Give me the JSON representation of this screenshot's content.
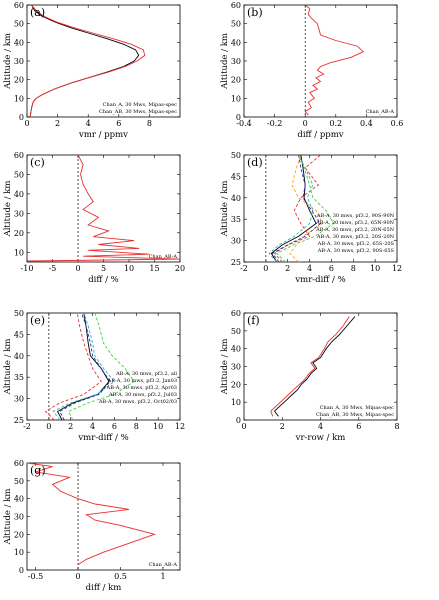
{
  "chart_data": [
    {
      "id": "a",
      "type": "line",
      "letter": "(a)",
      "xlabel": "vmr / ppmv",
      "ylabel": "Altitude / km",
      "xlim": [
        0,
        10
      ],
      "ylim": [
        0,
        60
      ],
      "xticks": [
        0,
        2,
        4,
        6,
        8
      ],
      "yticks": [
        0,
        10,
        20,
        30,
        40,
        50,
        60
      ],
      "legend_pos": "bottom-right",
      "zero_line": false,
      "series": [
        {
          "name": "Chan_A, 30 Mws, Mipas-spec",
          "color": "#000000",
          "x": [
            0.2,
            0.3,
            0.4,
            0.6,
            1.0,
            1.8,
            2.8,
            4.0,
            5.2,
            6.3,
            7.0,
            7.3,
            7.1,
            6.3,
            5.2,
            4.0,
            2.8,
            1.8,
            1.0,
            0.5,
            0.3
          ],
          "y": [
            0,
            5,
            8,
            10,
            12,
            15,
            18,
            21,
            24,
            27,
            30,
            33,
            36,
            39,
            42,
            45,
            48,
            51,
            54,
            57,
            60
          ]
        },
        {
          "name": "Chan_AB, 30 Mws, Mipas-spec",
          "color": "#e83030",
          "x": [
            0.2,
            0.3,
            0.4,
            0.6,
            1.0,
            1.8,
            2.8,
            4.0,
            5.3,
            6.4,
            7.2,
            7.7,
            7.6,
            6.8,
            5.6,
            4.3,
            3.0,
            1.9,
            1.1,
            0.6,
            0.3
          ],
          "y": [
            0,
            5,
            8,
            10,
            12,
            15,
            18,
            21,
            24,
            27,
            30,
            33,
            36,
            39,
            42,
            45,
            48,
            51,
            54,
            57,
            60
          ]
        }
      ]
    },
    {
      "id": "b",
      "type": "line",
      "letter": "(b)",
      "xlabel": "diff / ppmv",
      "ylabel": "Altitude / km",
      "xlim": [
        -0.4,
        0.6
      ],
      "ylim": [
        0,
        60
      ],
      "xticks": [
        -0.4,
        -0.2,
        0.0,
        0.2,
        0.4,
        0.6
      ],
      "yticks": [
        0,
        10,
        20,
        30,
        40,
        50,
        60
      ],
      "legend_pos": "bottom-right",
      "zero_line": true,
      "series": [
        {
          "name": "Chan_AB-A",
          "color": "#e83030",
          "x": [
            0.02,
            0.0,
            0.04,
            0.02,
            0.06,
            0.03,
            0.08,
            0.05,
            0.1,
            0.07,
            0.12,
            0.08,
            0.1,
            0.16,
            0.3,
            0.38,
            0.34,
            0.2,
            0.1,
            0.09,
            0.08,
            0.04,
            0.02,
            0.03,
            0.0
          ],
          "y": [
            1,
            3,
            5,
            8,
            10,
            13,
            15,
            17,
            19,
            21,
            23,
            25,
            27,
            29,
            32,
            35,
            38,
            41,
            44,
            47,
            50,
            53,
            55,
            58,
            60
          ]
        }
      ]
    },
    {
      "id": "c",
      "type": "line",
      "letter": "(c)",
      "xlabel": "diff / %",
      "ylabel": "Altitude / km",
      "xlim": [
        -10,
        20
      ],
      "ylim": [
        5,
        60
      ],
      "xticks": [
        -10,
        -5,
        0,
        5,
        10,
        15,
        20
      ],
      "yticks": [
        10,
        20,
        30,
        40,
        50,
        60
      ],
      "legend_pos": "bottom-right",
      "zero_line": true,
      "series": [
        {
          "name": "Chan_AB-A",
          "color": "#e83030",
          "x": [
            -10,
            20,
            1,
            14,
            2,
            12,
            4,
            11,
            3,
            6,
            2,
            4,
            1,
            3,
            2,
            1,
            0.5,
            1,
            0
          ],
          "y": [
            5.5,
            6.5,
            8,
            9,
            11,
            12,
            14,
            16,
            18,
            21,
            24,
            28,
            32,
            36,
            40,
            45,
            50,
            55,
            60
          ]
        }
      ]
    },
    {
      "id": "d",
      "type": "line",
      "letter": "(d)",
      "xlabel": "vmr-diff / %",
      "ylabel": "Altitude / km",
      "xlim": [
        -2,
        12
      ],
      "ylim": [
        25,
        50
      ],
      "xticks": [
        -2,
        0,
        2,
        4,
        6,
        8,
        10,
        12
      ],
      "yticks": [
        25,
        30,
        35,
        40,
        45,
        50
      ],
      "legend_pos": "right",
      "zero_line": true,
      "series": [
        {
          "name": "AB-A, 30 mws, pf3.2, 90S-90N",
          "color": "#000000",
          "dash": "",
          "x": [
            1.0,
            0.5,
            1.5,
            3.0,
            4.6,
            4.0,
            3.5,
            3.6,
            3.4,
            3.2
          ],
          "y": [
            25,
            27,
            29,
            31,
            34,
            37,
            40,
            43,
            47,
            50
          ]
        },
        {
          "name": "AB-A, 30 mws, pf3.2, 65N-90N",
          "color": "#e83030",
          "dash": "3,2",
          "x": [
            1.5,
            0.8,
            2.0,
            4.0,
            3.2,
            2.6,
            3.2,
            4.8,
            3.6,
            5.0
          ],
          "y": [
            25,
            27,
            29,
            31,
            34,
            37,
            40,
            43,
            47,
            50
          ]
        },
        {
          "name": "AB-A, 30 mws, pf3.2, 20N-65N",
          "color": "#2fb7a8",
          "dash": "3,2",
          "x": [
            1.0,
            0.3,
            1.2,
            2.6,
            4.0,
            4.3,
            3.8,
            4.3,
            3.6,
            3.0
          ],
          "y": [
            25,
            27,
            29,
            31,
            34,
            37,
            40,
            43,
            47,
            50
          ]
        },
        {
          "name": "AB-A, 30 mws, pf3.2, 20S-20N",
          "color": "#3bd23b",
          "dash": "3,2",
          "x": [
            1.8,
            1.0,
            2.5,
            4.5,
            6.2,
            5.5,
            4.3,
            4.0,
            3.5,
            3.0
          ],
          "y": [
            25,
            27,
            29,
            31,
            34,
            37,
            40,
            43,
            47,
            50
          ]
        },
        {
          "name": "AB-A, 30 mws, pf3.2, 65S-20S",
          "color": "#2030c0",
          "dash": "3,2",
          "x": [
            1.2,
            0.6,
            2.0,
            3.6,
            5.0,
            4.2,
            3.4,
            3.6,
            3.2,
            3.0
          ],
          "y": [
            25,
            27,
            29,
            31,
            34,
            37,
            40,
            43,
            47,
            50
          ]
        },
        {
          "name": "AB-A, 30 mws, pf3.2, 90S-65S",
          "color": "#ffa020",
          "dash": "3,2",
          "x": [
            3.0,
            2.2,
            2.8,
            3.4,
            5.2,
            4.6,
            3.0,
            2.4,
            2.8,
            3.2
          ],
          "y": [
            25,
            27,
            29,
            31,
            34,
            37,
            40,
            43,
            47,
            50
          ]
        }
      ]
    },
    {
      "id": "e",
      "type": "line",
      "letter": "(e)",
      "xlabel": "vmr-diff / %",
      "ylabel": "Altitude / km",
      "xlim": [
        -2,
        12
      ],
      "ylim": [
        25,
        50
      ],
      "xticks": [
        -2,
        0,
        2,
        4,
        6,
        8,
        10,
        12
      ],
      "yticks": [
        25,
        30,
        35,
        40,
        45,
        50
      ],
      "legend_pos": "right",
      "zero_line": true,
      "series": [
        {
          "name": "AB-A, 30 mws, pf3.2, all",
          "color": "#000000",
          "dash": "",
          "x": [
            1.2,
            0.8,
            2.2,
            4.5,
            5.5,
            4.8,
            3.8,
            3.6,
            3.4,
            3.2
          ],
          "y": [
            25,
            27,
            29,
            31,
            34,
            37,
            40,
            43,
            47,
            50
          ]
        },
        {
          "name": "AB-A, 30 mws, pf3.2, Jan03",
          "color": "#e83030",
          "dash": "3,2",
          "x": [
            0.5,
            -0.3,
            1.0,
            3.2,
            4.8,
            4.0,
            3.6,
            3.2,
            2.8,
            2.6
          ],
          "y": [
            25,
            27,
            29,
            31,
            34,
            37,
            40,
            43,
            47,
            50
          ]
        },
        {
          "name": "AB-A, 30 mws, pf3.2, Apr03",
          "color": "#2fb7a8",
          "dash": "3,2",
          "x": [
            1.0,
            0.4,
            2.0,
            4.4,
            6.0,
            5.0,
            4.2,
            4.0,
            3.6,
            3.2
          ],
          "y": [
            25,
            27,
            29,
            31,
            34,
            37,
            40,
            43,
            47,
            50
          ]
        },
        {
          "name": "AB-A, 30 mws, pf3.2, Jul03",
          "color": "#3bd23b",
          "dash": "3,2",
          "x": [
            2.2,
            1.8,
            3.6,
            6.0,
            7.8,
            7.0,
            5.8,
            5.0,
            4.6,
            4.2
          ],
          "y": [
            25,
            27,
            29,
            31,
            34,
            37,
            40,
            43,
            47,
            50
          ]
        },
        {
          "name": "AB-A, 30 mws, pf3.2, Oct02/03",
          "color": "#2030c0",
          "dash": "3,2",
          "x": [
            1.4,
            1.0,
            2.4,
            4.6,
            5.6,
            4.8,
            4.0,
            3.8,
            3.4,
            3.0
          ],
          "y": [
            25,
            27,
            29,
            31,
            34,
            37,
            40,
            43,
            47,
            50
          ]
        }
      ]
    },
    {
      "id": "f",
      "type": "line",
      "letter": "(f)",
      "xlabel": "vr-row / km",
      "ylabel": "Altitude / km",
      "xlim": [
        0,
        8
      ],
      "ylim": [
        0,
        60
      ],
      "xticks": [
        0,
        2,
        4,
        6,
        8
      ],
      "yticks": [
        0,
        10,
        20,
        30,
        40,
        50,
        60
      ],
      "legend_pos": "bottom-right",
      "zero_line": false,
      "series": [
        {
          "name": "Chan_A, 30 Mws, Mipas-spec",
          "color": "#000000",
          "x": [
            1.8,
            1.6,
            1.9,
            2.2,
            2.5,
            2.8,
            3.0,
            3.3,
            3.5,
            3.8,
            3.6,
            4.0,
            4.3,
            4.6,
            5.0,
            5.4,
            5.8
          ],
          "y": [
            2,
            5,
            8,
            11,
            14,
            17,
            20,
            23,
            26,
            29,
            32,
            35,
            40,
            44,
            48,
            53,
            58
          ]
        },
        {
          "name": "Chan_AB, 30 Mws, Mipas-spec",
          "color": "#e83030",
          "x": [
            1.5,
            1.4,
            1.7,
            2.0,
            2.3,
            2.6,
            2.9,
            3.2,
            3.4,
            3.7,
            3.5,
            3.9,
            4.2,
            4.4,
            4.8,
            5.2,
            5.5
          ],
          "y": [
            2,
            5,
            8,
            11,
            14,
            17,
            20,
            23,
            26,
            29,
            32,
            35,
            40,
            44,
            48,
            53,
            58
          ]
        }
      ]
    },
    {
      "id": "g",
      "type": "line",
      "letter": "(g)",
      "xlabel": "diff / km",
      "ylabel": "Altitude / km",
      "xlim": [
        -0.6,
        1.2
      ],
      "ylim": [
        0,
        60
      ],
      "xticks": [
        -0.5,
        0.0,
        0.5,
        1.0
      ],
      "yticks": [
        0,
        10,
        20,
        30,
        40,
        50,
        60
      ],
      "legend_pos": "bottom-right",
      "zero_line": true,
      "series": [
        {
          "name": "Chan_AB-A",
          "color": "#e83030",
          "x": [
            0.0,
            0.1,
            0.3,
            0.6,
            0.9,
            0.5,
            0.2,
            0.1,
            0.6,
            0.2,
            0.0,
            -0.2,
            -0.3,
            -0.1,
            -0.5,
            -0.3,
            -0.6
          ],
          "y": [
            3,
            6,
            10,
            15,
            20,
            25,
            28,
            31,
            34,
            37,
            40,
            44,
            48,
            52,
            55,
            58,
            60
          ]
        }
      ]
    }
  ]
}
